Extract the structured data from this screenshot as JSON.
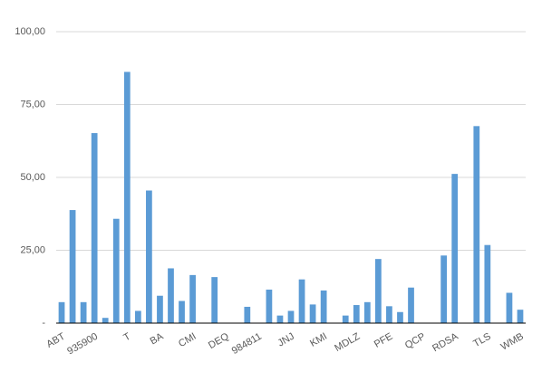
{
  "chart_data": {
    "type": "bar",
    "categories": [
      "ABT",
      null,
      null,
      "935900",
      null,
      null,
      "T",
      null,
      null,
      "BA",
      null,
      null,
      "CMI",
      null,
      null,
      "DEQ",
      null,
      null,
      "984811",
      null,
      null,
      "JNJ",
      null,
      null,
      "KMI",
      null,
      null,
      "MDLZ",
      null,
      null,
      "PFE",
      null,
      null,
      "QCP",
      null,
      null,
      "RDSA",
      null,
      null,
      "TLS",
      null,
      null,
      "WMB"
    ],
    "values": [
      7.2,
      38.8,
      7.2,
      65.2,
      1.8,
      35.8,
      86.2,
      4.2,
      45.5,
      9.4,
      18.8,
      7.6,
      16.5,
      0,
      15.8,
      0,
      0,
      5.6,
      0,
      11.5,
      2.6,
      4.2,
      15,
      6.4,
      11.2,
      0,
      2.6,
      6.2,
      7.2,
      22,
      5.8,
      3.8,
      12.2,
      0,
      0,
      23.2,
      51.2,
      0,
      67.6,
      26.8,
      0,
      10.4,
      4.6
    ],
    "color": "#5b9bd5",
    "ylim": [
      0,
      100
    ],
    "yticks": [
      {
        "value": 0,
        "label": "-"
      },
      {
        "value": 25,
        "label": "25,00"
      },
      {
        "value": 50,
        "label": "50,00"
      },
      {
        "value": 75,
        "label": "75,00"
      },
      {
        "value": 100,
        "label": "100,00"
      }
    ],
    "grid": true
  }
}
